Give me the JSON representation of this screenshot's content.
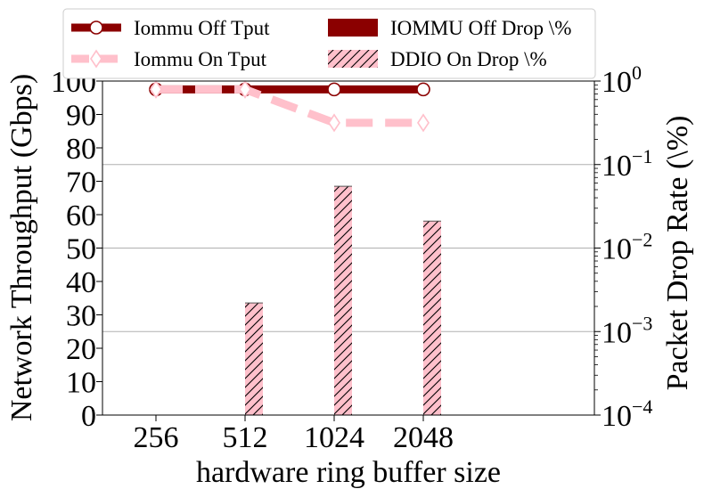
{
  "chart_data": {
    "type": "bar",
    "xlabel": "hardware ring buffer size",
    "ylabel": "Network Throughput (Gbps)",
    "y2label": "Packet Drop Rate (\\%)",
    "categories": [
      "256",
      "512",
      "1024",
      "2048"
    ],
    "ylim": [
      0,
      100
    ],
    "yticks": [
      "0",
      "10",
      "20",
      "30",
      "40",
      "50",
      "60",
      "70",
      "80",
      "90",
      "100"
    ],
    "y2lim": [
      0.0001,
      1
    ],
    "y2scale": "log",
    "y2ticks": [
      {
        "value": 0.0001,
        "base": "10",
        "exp": "−4"
      },
      {
        "value": 0.001,
        "base": "10",
        "exp": "−3"
      },
      {
        "value": 0.01,
        "base": "10",
        "exp": "−2"
      },
      {
        "value": 0.1,
        "base": "10",
        "exp": "−1"
      },
      {
        "value": 1,
        "base": "10",
        "exp": "0"
      }
    ],
    "grid": "horizontal at right-axis major ticks",
    "legend_position": "top, above plot, 2 columns",
    "series": [
      {
        "name": "Iommu Off Tput",
        "kind": "line",
        "axis": "left",
        "color": "#8b0000",
        "style": "solid",
        "marker": "circle",
        "values": [
          97.5,
          97.5,
          97.5,
          97.5
        ]
      },
      {
        "name": "Iommu On Tput",
        "kind": "line",
        "axis": "left",
        "color": "#ffc0cb",
        "style": "dashed",
        "marker": "diamond",
        "values": [
          97.5,
          97.5,
          87.5,
          87.5
        ]
      },
      {
        "name": "IOMMU Off Drop \\%",
        "kind": "bar",
        "axis": "right",
        "color": "#8b0000",
        "hatch": "none",
        "values": [
          null,
          null,
          null,
          null
        ]
      },
      {
        "name": "DDIO On Drop \\%",
        "kind": "bar",
        "axis": "right",
        "color": "#ffc0cb",
        "hatch": "diagonal",
        "values": [
          null,
          0.0022,
          0.055,
          0.021
        ]
      }
    ]
  }
}
